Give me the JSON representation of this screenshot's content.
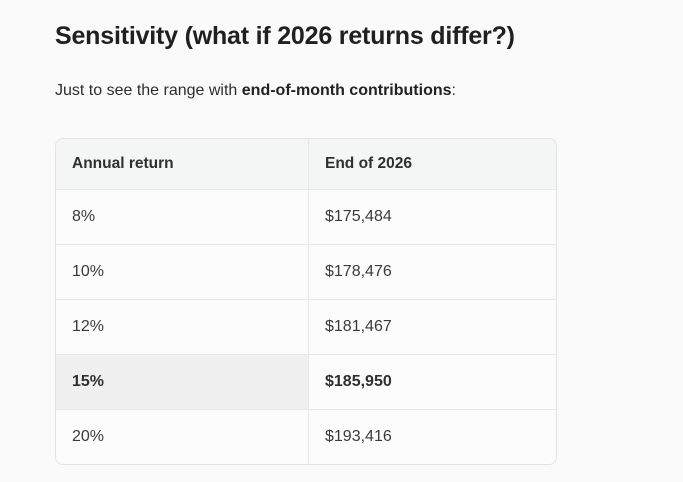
{
  "page": {
    "heading": "Sensitivity (what if 2026 returns differ?)",
    "intro_prefix": "Just to see the range with ",
    "intro_bold": "end-of-month contributions",
    "intro_suffix": ":"
  },
  "table": {
    "columns": [
      "Annual return",
      "End of 2026"
    ],
    "rows": [
      {
        "annual_return": "8%",
        "end_of_2026": "$175,484",
        "highlight": false
      },
      {
        "annual_return": "10%",
        "end_of_2026": "$178,476",
        "highlight": false
      },
      {
        "annual_return": "12%",
        "end_of_2026": "$181,467",
        "highlight": false
      },
      {
        "annual_return": "15%",
        "end_of_2026": "$185,950",
        "highlight": true
      },
      {
        "annual_return": "20%",
        "end_of_2026": "$193,416",
        "highlight": false
      }
    ]
  },
  "colors": {
    "page_background": "#fafafa",
    "table_header_background": "#f4f5f5",
    "cell_background": "#fcfcfc",
    "highlight_cell_background": "#f0f0f1",
    "border": "#e3e3e3",
    "text": "#2d2d2d"
  }
}
